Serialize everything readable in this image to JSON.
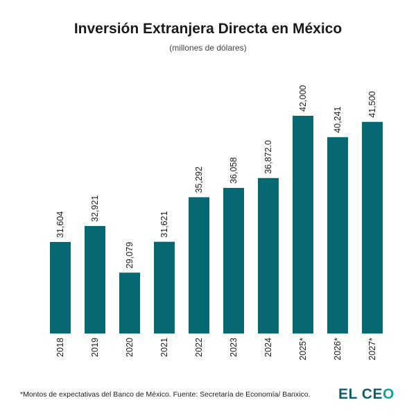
{
  "header": {
    "title": "Inversión Extranjera Directa en México",
    "subtitle": "(millones de dólares)"
  },
  "footer": {
    "note": "*Montos de expectativas del Banco de México. Fuente: Secretaría de Economía/ Banxico.",
    "brand_main": "EL CE",
    "brand_last": "O"
  },
  "colors": {
    "bar": "#056872",
    "text": "#1a1a1a",
    "brand_dark": "#0e5d6b",
    "brand_accent": "#16a1a0"
  },
  "chart_data": {
    "type": "bar",
    "title": "Inversión Extranjera Directa en México",
    "subtitle": "(millones de dólares)",
    "xlabel": "",
    "ylabel": "",
    "grid": false,
    "ylim": [
      0,
      42000
    ],
    "categories": [
      "2018",
      "2019",
      "2020",
      "2021",
      "2022",
      "2023",
      "2024",
      "2025*",
      "2026*",
      "2027*"
    ],
    "values": [
      31604,
      32921,
      29079,
      31621,
      35292,
      36058,
      36872.0,
      42000,
      40241,
      41500
    ],
    "data_labels": [
      "31,604",
      "32,921",
      "29,079",
      "31,621",
      "35,292",
      "36,058",
      "36,872.0",
      "42,000",
      "40,241",
      "41,500"
    ]
  }
}
